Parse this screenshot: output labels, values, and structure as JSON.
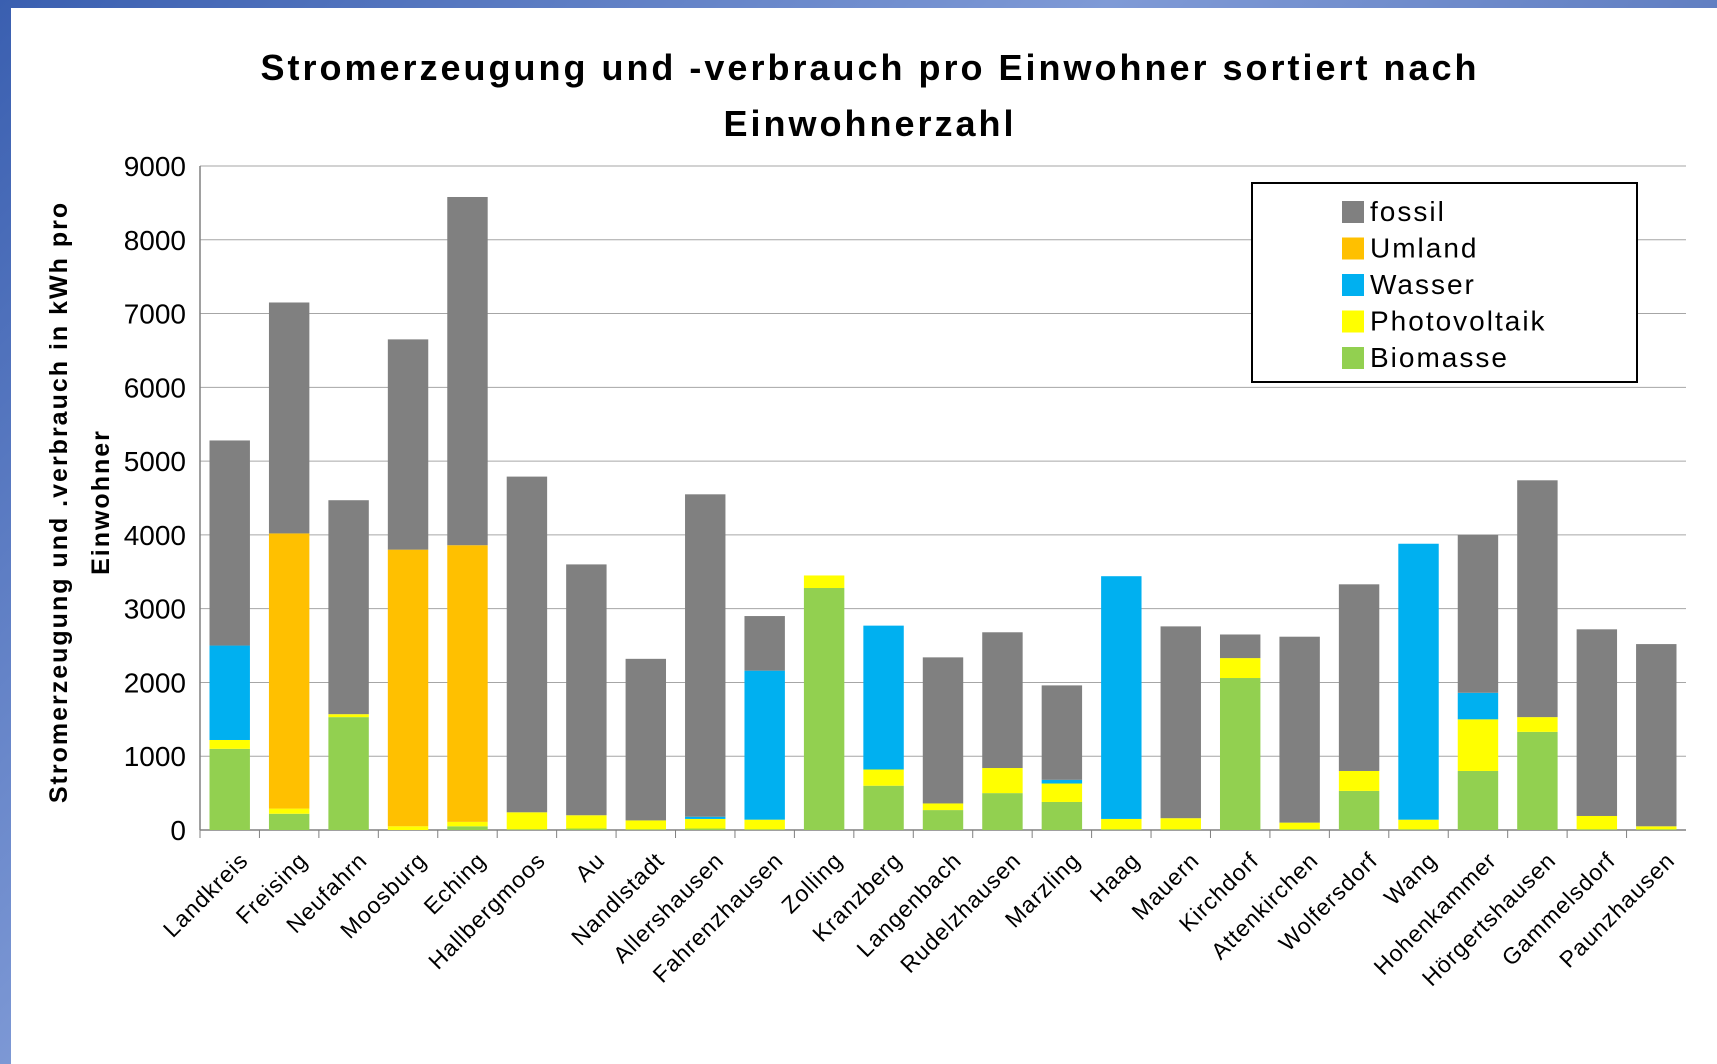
{
  "chart_data": {
    "type": "stacked_bar",
    "title": "Stromerzeugung und -verbrauch pro Einwohner sortiert nach Einwohnerzahl",
    "y_label": "Stromerzeugung und .verbrauch in kWh pro Einwohner",
    "categories": [
      "Landkreis",
      "Freising",
      "Neufahrn",
      "Moosburg",
      "Eching",
      "Hallbergmoos",
      "Au",
      "Nandlstadt",
      "Allershausen",
      "Fahrenzhausen",
      "Zolling",
      "Kranzberg",
      "Langenbach",
      "Rudelzhausen",
      "Marzling",
      "Haag",
      "Mauern",
      "Kirchdorf",
      "Attenkirchen",
      "Wolfersdorf",
      "Wang",
      "Hohenkammer",
      "Hörgertshausen",
      "Gammelsdorf",
      "Paunzhausen"
    ],
    "series": [
      {
        "name": "Biomasse",
        "color": "#92d050",
        "values": [
          1100,
          220,
          1530,
          0,
          50,
          10,
          20,
          10,
          20,
          10,
          3280,
          600,
          270,
          500,
          380,
          10,
          10,
          2060,
          10,
          530,
          10,
          800,
          1330,
          10,
          10
        ]
      },
      {
        "name": "Photovoltaik",
        "color": "#ffff00",
        "values": [
          120,
          70,
          40,
          50,
          60,
          230,
          180,
          120,
          130,
          130,
          170,
          220,
          90,
          340,
          250,
          140,
          150,
          270,
          90,
          270,
          130,
          700,
          200,
          180,
          40
        ]
      },
      {
        "name": "Wasser",
        "color": "#00b0f0",
        "values": [
          1280,
          0,
          0,
          0,
          0,
          0,
          0,
          0,
          30,
          2020,
          0,
          1950,
          0,
          0,
          50,
          3290,
          0,
          0,
          0,
          0,
          3740,
          360,
          0,
          0,
          0
        ]
      },
      {
        "name": "Umland",
        "color": "#ffc000",
        "values": [
          0,
          3730,
          0,
          3750,
          3750,
          0,
          0,
          0,
          0,
          0,
          0,
          0,
          0,
          0,
          0,
          0,
          0,
          0,
          0,
          0,
          0,
          0,
          0,
          0,
          0
        ]
      },
      {
        "name": "fossil",
        "color": "#808080",
        "values": [
          2780,
          3130,
          2900,
          2850,
          4720,
          4550,
          3400,
          2190,
          4370,
          740,
          0,
          0,
          1980,
          1840,
          1280,
          0,
          2600,
          320,
          2520,
          2530,
          0,
          2140,
          3210,
          2530,
          2470
        ]
      }
    ],
    "ylim": [
      0,
      9000
    ],
    "yticks": [
      0,
      1000,
      2000,
      3000,
      4000,
      5000,
      6000,
      7000,
      8000,
      9000
    ],
    "grid": true,
    "legend": "top-right"
  }
}
